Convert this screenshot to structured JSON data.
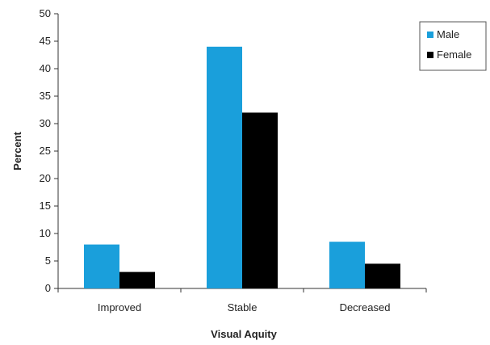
{
  "chart_data": {
    "type": "bar",
    "title": "",
    "xlabel": "Visual Aquity",
    "ylabel": "Percent",
    "ylim": [
      0,
      50
    ],
    "ytick_step": 5,
    "categories": [
      "Improved",
      "Stable",
      "Decreased"
    ],
    "series": [
      {
        "name": "Male",
        "color": "#1a9fdb",
        "values": [
          8,
          44,
          8.5
        ]
      },
      {
        "name": "Female",
        "color": "#000000",
        "values": [
          3,
          32,
          4.5
        ]
      }
    ],
    "grid": false,
    "legend_position": "top-right"
  }
}
